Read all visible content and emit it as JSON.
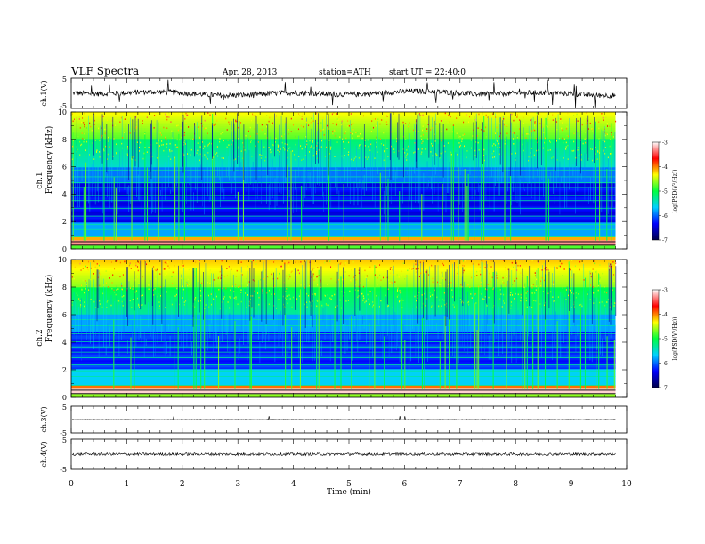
{
  "header": {
    "title": "VLF  Spectra",
    "date": "Apr. 28, 2013",
    "station": "station=ATH",
    "start": "start  UT  =   22:40:0"
  },
  "chart_data": {
    "type": "heatmap",
    "xlabel": "Time  (min)",
    "xlim": [
      0,
      10
    ],
    "xticks": [
      "0",
      "1",
      "2",
      "3",
      "4",
      "5",
      "6",
      "7",
      "8",
      "9",
      "10"
    ],
    "data_end_min": 9.8,
    "panels": [
      {
        "kind": "waveform",
        "ylabel": "ch.1(V)",
        "ylim": [
          -5,
          5
        ],
        "yticks": [
          "5",
          "-5"
        ],
        "noise": "high"
      },
      {
        "kind": "spectrogram",
        "ylabel_channel": "ch.1",
        "ylabel": "Frequency  (kHz)",
        "ylim": [
          0,
          10
        ],
        "yticks": [
          "0",
          "2",
          "4",
          "6",
          "8",
          "10"
        ]
      },
      {
        "kind": "spectrogram",
        "ylabel_channel": "ch.2",
        "ylabel": "Frequency  (kHz)",
        "ylim": [
          0,
          10
        ],
        "yticks": [
          "0",
          "2",
          "4",
          "6",
          "8",
          "10"
        ]
      },
      {
        "kind": "waveform",
        "ylabel": "ch.3(V)",
        "ylim": [
          -5,
          5
        ],
        "yticks": [
          "5",
          "-5"
        ],
        "noise": "flat"
      },
      {
        "kind": "waveform",
        "ylabel": "ch.4(V)",
        "ylim": [
          -5,
          5
        ],
        "yticks": [
          "5",
          "-5"
        ],
        "noise": "band"
      }
    ],
    "colorbar": {
      "label": "log(PSD(V²/Hz))",
      "range": [
        -7,
        -3
      ],
      "ticks": [
        "-3",
        "-4",
        "-5",
        "-6",
        "-7"
      ],
      "colors": [
        "#00004a",
        "#0000ff",
        "#00d0ff",
        "#00ff40",
        "#ffff00",
        "#ff0000",
        "#ffffff"
      ]
    }
  }
}
